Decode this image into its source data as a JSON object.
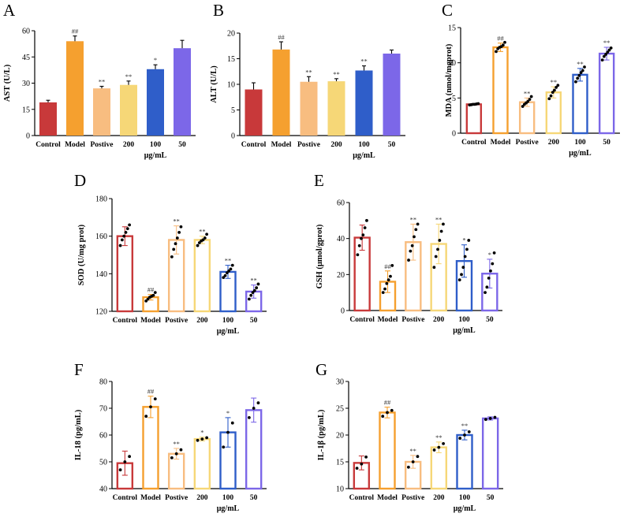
{
  "chart_data": [
    {
      "panel": "A",
      "type": "bar",
      "style": "filled",
      "ylabel": "AST (U/L)",
      "ylim": [
        0,
        60
      ],
      "yticks": [
        0,
        15,
        30,
        45,
        60
      ],
      "categories": [
        "Control",
        "Model",
        "Postive",
        "200",
        "100",
        "50"
      ],
      "xunit": "μg/mL",
      "values": [
        19,
        54,
        27,
        29,
        38,
        50
      ],
      "errors": [
        1.2,
        3,
        1.2,
        2.2,
        2.5,
        4.5
      ],
      "labels": [
        "",
        "##",
        "**",
        "**",
        "*",
        ""
      ]
    },
    {
      "panel": "B",
      "type": "bar",
      "style": "filled",
      "ylabel": "ALT (U/L)",
      "ylim": [
        0,
        20
      ],
      "yticks": [
        0,
        5,
        10,
        15,
        20
      ],
      "categories": [
        "Control",
        "Model",
        "Postive",
        "200",
        "100",
        "50"
      ],
      "xunit": "μg/mL",
      "values": [
        9,
        16.8,
        10.5,
        10.6,
        12.7,
        16
      ],
      "errors": [
        1.3,
        1.5,
        1,
        0.5,
        0.9,
        0.7
      ],
      "labels": [
        "",
        "##",
        "**",
        "**",
        "**",
        ""
      ]
    },
    {
      "panel": "C",
      "type": "bar",
      "style": "outline",
      "ylabel": "MDA (nmol/mgprot)",
      "ylim": [
        0,
        15
      ],
      "yticks": [
        0,
        5,
        10,
        15
      ],
      "categories": [
        "Control",
        "Model",
        "Postive",
        "200",
        "100",
        "50"
      ],
      "xunit": "μg/mL",
      "values": [
        4.1,
        12.2,
        4.4,
        5.8,
        8.3,
        11.3
      ],
      "errors": [
        0.1,
        0.6,
        0.6,
        0.8,
        0.9,
        0.9
      ],
      "labels": [
        "",
        "##",
        "**",
        "**",
        "**",
        "**"
      ],
      "points": [
        [
          4.0,
          4.05,
          4.1,
          4.1,
          4.15,
          4.2
        ],
        [
          11.6,
          12.0,
          12.2,
          12.3,
          12.5,
          12.9
        ],
        [
          3.8,
          4.1,
          4.3,
          4.5,
          4.8,
          5.2
        ],
        [
          4.9,
          5.3,
          5.8,
          6.1,
          6.5,
          6.8
        ],
        [
          7.3,
          7.8,
          8.2,
          8.6,
          8.9,
          9.4
        ],
        [
          10.4,
          10.9,
          11.2,
          11.5,
          11.8,
          12.1
        ]
      ]
    },
    {
      "panel": "D",
      "type": "bar",
      "style": "outline",
      "ylabel": "SOD (U/mg prot)",
      "ylim": [
        120,
        180
      ],
      "yticks": [
        120,
        140,
        160,
        180
      ],
      "categories": [
        "Control",
        "Model",
        "Postive",
        "200",
        "100",
        "50"
      ],
      "xunit": "μg/mL",
      "values": [
        160,
        127.5,
        158,
        158,
        141,
        130.5
      ],
      "errors": [
        5,
        1.5,
        7.5,
        2,
        3.5,
        3.5
      ],
      "labels": [
        "",
        "##",
        "**",
        "**",
        "**",
        "**"
      ],
      "points": [
        [
          155,
          158,
          160,
          162,
          164,
          166
        ],
        [
          125.5,
          126.5,
          127.5,
          128,
          128.5,
          130
        ],
        [
          149,
          153,
          156,
          159,
          162,
          165
        ],
        [
          155,
          156.5,
          157.5,
          158,
          159,
          161
        ],
        [
          138,
          139,
          140.5,
          141.5,
          142.5,
          144.5
        ],
        [
          126.5,
          128.5,
          130,
          131,
          132.5,
          134.5
        ]
      ]
    },
    {
      "panel": "E",
      "type": "bar",
      "style": "outline",
      "ylabel": "GSH (μmol/gprot)",
      "ylim": [
        0,
        60
      ],
      "yticks": [
        0,
        20,
        40,
        60
      ],
      "categories": [
        "Control",
        "Model",
        "Postive",
        "200",
        "100",
        "50"
      ],
      "xunit": "μg/mL",
      "values": [
        40.5,
        16,
        38,
        37,
        27.5,
        20.5
      ],
      "errors": [
        7,
        6,
        10,
        11,
        9,
        8
      ],
      "labels": [
        "",
        "##",
        "**",
        "**",
        "*",
        "*"
      ],
      "points": [
        [
          31,
          36,
          40,
          42,
          46,
          50
        ],
        [
          10,
          12,
          15,
          17,
          19,
          25
        ],
        [
          28,
          33,
          36,
          41,
          45,
          48
        ],
        [
          24,
          30,
          34,
          39,
          44,
          48
        ],
        [
          17,
          20,
          24,
          30,
          34,
          39
        ],
        [
          10,
          13,
          18,
          22,
          26,
          32
        ]
      ]
    },
    {
      "panel": "F",
      "type": "bar",
      "style": "outline",
      "ylabel": "IL-18 (pg/mL)",
      "ylim": [
        40,
        80
      ],
      "yticks": [
        40,
        50,
        60,
        70,
        80
      ],
      "categories": [
        "Control",
        "Model",
        "Postive",
        "200",
        "100",
        "50"
      ],
      "xunit": "μg/mL",
      "values": [
        49.5,
        70.5,
        53,
        58.5,
        61,
        69.3
      ],
      "errors": [
        4.5,
        4,
        2,
        0.7,
        5.5,
        4.5
      ],
      "labels": [
        "",
        "##",
        "**",
        "*",
        "*",
        ""
      ],
      "points": [
        [
          47,
          50,
          52
        ],
        [
          67,
          70.5,
          73.5
        ],
        [
          51.5,
          53,
          54.5
        ],
        [
          58,
          58.5,
          59
        ],
        [
          55.5,
          61,
          64.5
        ],
        [
          66.5,
          70,
          72
        ]
      ]
    },
    {
      "panel": "G",
      "type": "bar",
      "style": "outline",
      "ylabel": "IL-1β (pg/mL)",
      "ylim": [
        10,
        30
      ],
      "yticks": [
        10,
        15,
        20,
        25,
        30
      ],
      "categories": [
        "Control",
        "Model",
        "Postive",
        "200",
        "100",
        "50"
      ],
      "xunit": "μg/mL",
      "values": [
        14.8,
        24.2,
        15,
        17.7,
        20,
        23.1
      ],
      "errors": [
        1.3,
        1,
        1.2,
        1,
        0.9,
        0.3
      ],
      "labels": [
        "",
        "##",
        "**",
        "**",
        "**",
        ""
      ],
      "points": [
        [
          13.8,
          14.6,
          15.9
        ],
        [
          23.5,
          24.2,
          24.6
        ],
        [
          14.0,
          15.0,
          16.0
        ],
        [
          17.2,
          17.7,
          18.4
        ],
        [
          19.4,
          20.0,
          20.6
        ],
        [
          22.9,
          23.1,
          23.3
        ]
      ]
    }
  ],
  "figure": {
    "colors": [
      "#c8393a",
      "#f5a02f",
      "#f8bd80",
      "#f6d777",
      "#2f5ec9",
      "#7c67e8"
    ],
    "errorbar_color": "#000000"
  }
}
